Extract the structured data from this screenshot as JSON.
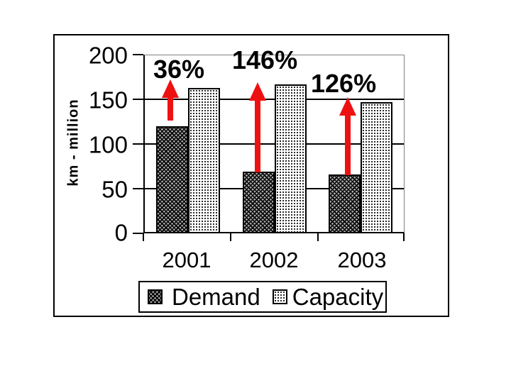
{
  "chart_data": {
    "type": "bar",
    "title": "",
    "categories": [
      "2001",
      "2002",
      "2003"
    ],
    "series": [
      {
        "name": "Demand",
        "values": [
          120,
          68,
          65
        ]
      },
      {
        "name": "Capacity",
        "values": [
          163,
          167,
          147
        ]
      }
    ],
    "ylabel": "km - million",
    "ylim": [
      0,
      200
    ],
    "yticks": [
      0,
      50,
      100,
      150,
      200
    ],
    "grid": true,
    "legend_position": "bottom",
    "annotations": [
      {
        "label": "36%",
        "category": "2001",
        "shape": "up-arrow"
      },
      {
        "label": "146%",
        "category": "2002",
        "shape": "up-arrow"
      },
      {
        "label": "126%",
        "category": "2003",
        "shape": "up-arrow"
      }
    ],
    "colors": {
      "arrow": "#EE1111",
      "axis": "#000000",
      "plot_border": "#808080",
      "demand_fill": "dark-dot-trellis-pattern",
      "capacity_fill": "light-dot-pattern"
    }
  }
}
